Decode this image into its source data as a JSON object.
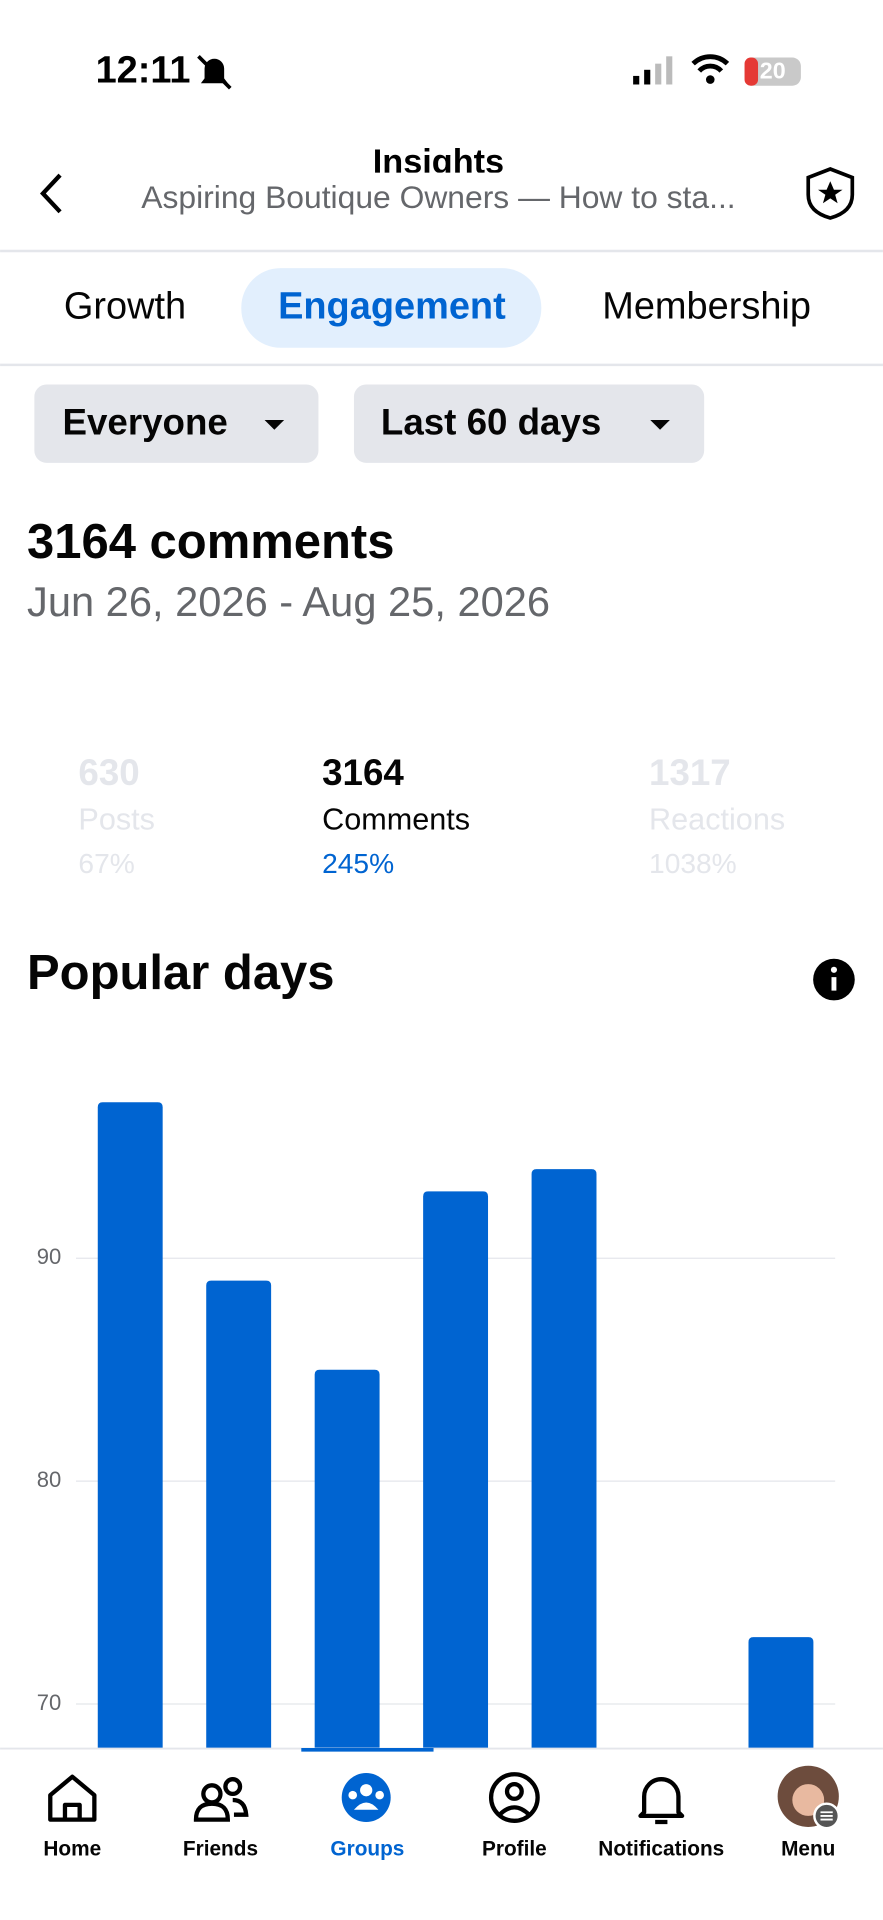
{
  "status": {
    "time": "12:11",
    "battery": "20"
  },
  "header": {
    "title": "Insights",
    "subtitle": "Aspiring Boutique Owners — How to sta..."
  },
  "tabs": [
    "Growth",
    "Engagement",
    "Membership"
  ],
  "filters": [
    "Everyone",
    "Last 60 days"
  ],
  "summary": {
    "headline": "3164 comments",
    "range": "Jun 26, 2026 - Aug 25, 2026"
  },
  "stats": [
    {
      "value": "630",
      "label": "Posts",
      "change": "67%"
    },
    {
      "value": "3164",
      "label": "Comments",
      "change": "245%"
    },
    {
      "value": "1317",
      "label": "Reactions",
      "change": "1038%"
    }
  ],
  "chart_data": {
    "type": "bar",
    "title": "Popular days",
    "categories": [
      null,
      null,
      null,
      null,
      null,
      null,
      null
    ],
    "values": [
      97,
      89,
      85,
      93,
      94,
      null,
      73
    ],
    "color": "#0064d1",
    "ylim": [
      68,
      98
    ],
    "yticks": [
      70,
      80,
      90
    ],
    "grid": true
  },
  "nav": [
    "Home",
    "Friends",
    "Groups",
    "Profile",
    "Notifications",
    "Menu"
  ]
}
